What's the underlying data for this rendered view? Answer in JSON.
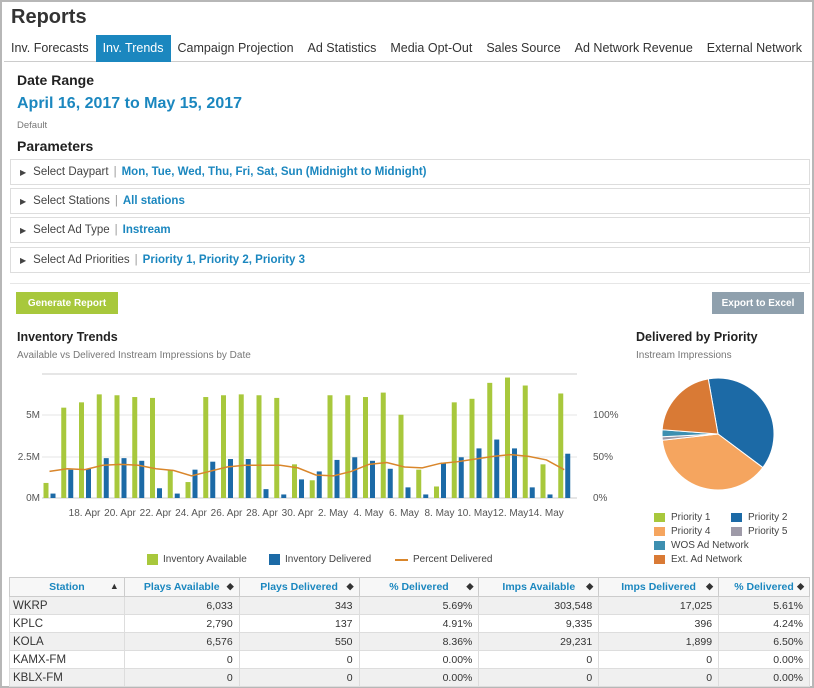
{
  "page": {
    "title": "Reports"
  },
  "tabs": [
    {
      "label": "Inv. Forecasts",
      "active": false
    },
    {
      "label": "Inv. Trends",
      "active": true
    },
    {
      "label": "Campaign Projection",
      "active": false
    },
    {
      "label": "Ad Statistics",
      "active": false
    },
    {
      "label": "Media Opt-Out",
      "active": false
    },
    {
      "label": "Sales Source",
      "active": false
    },
    {
      "label": "Ad Network Revenue",
      "active": false
    },
    {
      "label": "External Network",
      "active": false
    }
  ],
  "date_range": {
    "heading": "Date Range",
    "value": "April 16, 2017 to May 15, 2017",
    "note": "Default"
  },
  "parameters": {
    "heading": "Parameters",
    "rows": [
      {
        "label": "Select Daypart",
        "value": "Mon, Tue, Wed, Thu, Fri, Sat, Sun (Midnight to Midnight)"
      },
      {
        "label": "Select Stations",
        "value": "All stations"
      },
      {
        "label": "Select Ad Type",
        "value": "Instream"
      },
      {
        "label": "Select Ad Priorities",
        "value": "Priority 1, Priority 2, Priority 3"
      }
    ]
  },
  "buttons": {
    "generate": "Generate Report",
    "export": "Export to Excel"
  },
  "trends": {
    "title": "Inventory Trends",
    "subtitle": "Available vs Delivered Instream Impressions by Date",
    "left_ticks": [
      "5M",
      "2.5M",
      "0M"
    ],
    "right_ticks": [
      "100%",
      "50%",
      "0%"
    ],
    "legend": [
      "Inventory Available",
      "Inventory Delivered",
      "Percent Delivered"
    ]
  },
  "priority": {
    "title": "Delivered by Priority",
    "subtitle": "Instream Impressions"
  },
  "chart_data": [
    {
      "type": "bar",
      "title": "Inventory Trends",
      "x_tick_labels": [
        "18. Apr",
        "20. Apr",
        "22. Apr",
        "24. Apr",
        "26. Apr",
        "28. Apr",
        "30. Apr",
        "2. May",
        "4. May",
        "6. May",
        "8. May",
        "10. May",
        "12. May",
        "14. May"
      ],
      "categories": [
        "16. Apr",
        "17. Apr",
        "18. Apr",
        "19. Apr",
        "20. Apr",
        "21. Apr",
        "22. Apr",
        "23. Apr",
        "24. Apr",
        "25. Apr",
        "26. Apr",
        "27. Apr",
        "28. Apr",
        "29. Apr",
        "30. Apr",
        "1. May",
        "2. May",
        "3. May",
        "4. May",
        "5. May",
        "6. May",
        "7. May",
        "8. May",
        "9. May",
        "10. May",
        "11. May",
        "12. May",
        "13. May",
        "14. May",
        "15. May"
      ],
      "ylim": [
        0,
        7000000
      ],
      "y2lim": [
        0,
        1.4
      ],
      "series": [
        {
          "name": "Inventory Available",
          "color": "#a8c83c",
          "axis": "left",
          "values": [
            850000,
            5100000,
            5400000,
            5850000,
            5800000,
            5700000,
            5650000,
            1600000,
            900000,
            5700000,
            5800000,
            5850000,
            5800000,
            5650000,
            1900000,
            1000000,
            5800000,
            5800000,
            5700000,
            5950000,
            4700000,
            1600000,
            650000,
            5400000,
            5600000,
            6500000,
            6800000,
            6350000,
            1900000,
            5900000
          ]
        },
        {
          "name": "Inventory Delivered",
          "color": "#1c6aa6",
          "axis": "left",
          "values": [
            250000,
            1600000,
            1650000,
            2250000,
            2250000,
            2100000,
            550000,
            250000,
            1600000,
            2050000,
            2200000,
            2200000,
            500000,
            200000,
            1050000,
            1500000,
            2150000,
            2300000,
            2100000,
            1650000,
            600000,
            200000,
            2000000,
            2300000,
            2800000,
            3300000,
            2800000,
            600000,
            200000,
            2500000
          ]
        },
        {
          "name": "Percent Delivered",
          "color": "#d9862b",
          "axis": "right",
          "type": "line",
          "values": [
            0.3,
            0.33,
            0.32,
            0.37,
            0.38,
            0.37,
            0.33,
            0.31,
            0.25,
            0.3,
            0.35,
            0.37,
            0.37,
            0.37,
            0.34,
            0.26,
            0.25,
            0.3,
            0.38,
            0.4,
            0.35,
            0.34,
            0.39,
            0.41,
            0.44,
            0.47,
            0.49,
            0.47,
            0.43,
            0.32
          ]
        }
      ]
    },
    {
      "type": "pie",
      "title": "Delivered by Priority",
      "series": [
        {
          "name": "Priority 1",
          "color": "#a8c83c",
          "value": 0
        },
        {
          "name": "Priority 2",
          "color": "#1c6aa6",
          "value": 38
        },
        {
          "name": "Priority 4",
          "color": "#f5a55f",
          "value": 38
        },
        {
          "name": "Priority 5",
          "color": "#9e9aa8",
          "value": 1
        },
        {
          "name": "WOS Ad Network",
          "color": "#3d8fb0",
          "value": 2
        },
        {
          "name": "Ext. Ad Network",
          "color": "#d97a35",
          "value": 21
        }
      ]
    }
  ],
  "table": {
    "columns": [
      "Station",
      "Plays Available",
      "Plays Delivered",
      "% Delivered",
      "Imps Available",
      "Imps Delivered",
      "% Delivered"
    ],
    "sort_icons": [
      "▲",
      "◆",
      "◆",
      "◆",
      "◆",
      "◆",
      "◆"
    ],
    "rows": [
      [
        "WKRP",
        "6,033",
        "343",
        "5.69%",
        "303,548",
        "17,025",
        "5.61%"
      ],
      [
        "KPLC",
        "2,790",
        "137",
        "4.91%",
        "9,335",
        "396",
        "4.24%"
      ],
      [
        "KOLA",
        "6,576",
        "550",
        "8.36%",
        "29,231",
        "1,899",
        "6.50%"
      ],
      [
        "KAMX-FM",
        "0",
        "0",
        "0.00%",
        "0",
        "0",
        "0.00%"
      ],
      [
        "KBLX-FM",
        "0",
        "0",
        "0.00%",
        "0",
        "0",
        "0.00%"
      ]
    ]
  }
}
